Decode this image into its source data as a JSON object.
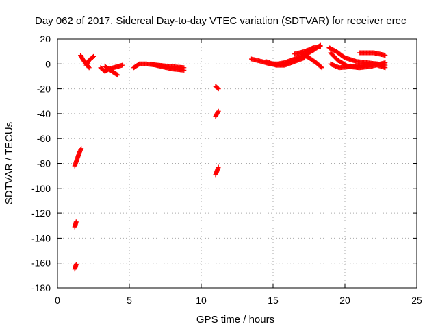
{
  "chart_data": {
    "type": "scatter",
    "title": "Day 062 of 2017, Sidereal Day-to-day VTEC variation (SDTVAR) for receiver erec",
    "xlabel": "GPS time / hours",
    "ylabel": "SDTVAR / TECUs",
    "xlim": [
      0,
      25
    ],
    "ylim": [
      -180,
      20
    ],
    "xticks": [
      0,
      5,
      10,
      15,
      20,
      25
    ],
    "yticks": [
      -180,
      -160,
      -140,
      -120,
      -100,
      -80,
      -60,
      -40,
      -20,
      0,
      20
    ],
    "grid": true,
    "marker": "+",
    "colors": {
      "series": "#ff0000",
      "grid": "#aaaaaa",
      "axis": "#000000"
    },
    "series": [
      {
        "name": "SDTVAR",
        "segments": [
          [
            [
              1.2,
              -165
            ],
            [
              1.25,
              -163
            ],
            [
              1.3,
              -161
            ]
          ],
          [
            [
              1.2,
              -131
            ],
            [
              1.25,
              -129
            ],
            [
              1.3,
              -127
            ]
          ],
          [
            [
              1.2,
              -82
            ],
            [
              1.35,
              -77
            ],
            [
              1.5,
              -72
            ],
            [
              1.65,
              -68
            ]
          ],
          [
            [
              1.6,
              7
            ],
            [
              1.8,
              3
            ],
            [
              2.0,
              0
            ],
            [
              2.2,
              -3
            ]
          ],
          [
            [
              2.0,
              -1
            ],
            [
              2.2,
              3
            ],
            [
              2.5,
              6
            ]
          ],
          [
            [
              3.0,
              -3
            ],
            [
              3.3,
              -6
            ],
            [
              3.6,
              -4
            ],
            [
              3.9,
              -3
            ],
            [
              4.2,
              -2
            ],
            [
              4.5,
              -1
            ]
          ],
          [
            [
              3.3,
              -2
            ],
            [
              3.8,
              -6
            ],
            [
              4.2,
              -9
            ]
          ],
          [
            [
              5.3,
              -3
            ],
            [
              5.7,
              0
            ],
            [
              6.2,
              0
            ],
            [
              7.0,
              -1
            ],
            [
              7.8,
              -2
            ],
            [
              8.8,
              -3
            ]
          ],
          [
            [
              6.5,
              0
            ],
            [
              7.2,
              -2
            ],
            [
              8.0,
              -4
            ],
            [
              8.8,
              -5
            ]
          ],
          [
            [
              11.0,
              -18
            ],
            [
              11.2,
              -20
            ]
          ],
          [
            [
              11.0,
              -42
            ],
            [
              11.2,
              -38
            ]
          ],
          [
            [
              11.0,
              -89
            ],
            [
              11.2,
              -83
            ]
          ],
          [
            [
              13.5,
              4
            ],
            [
              14.2,
              2
            ],
            [
              14.8,
              0
            ],
            [
              15.3,
              0
            ],
            [
              15.8,
              1
            ],
            [
              16.5,
              4
            ],
            [
              17.2,
              7
            ],
            [
              17.8,
              11
            ],
            [
              18.3,
              15
            ]
          ],
          [
            [
              14.5,
              2
            ],
            [
              15.2,
              -1
            ],
            [
              15.8,
              -1
            ],
            [
              16.5,
              2
            ],
            [
              17.2,
              5
            ]
          ],
          [
            [
              16.5,
              8
            ],
            [
              17.2,
              10
            ],
            [
              17.8,
              13
            ],
            [
              18.3,
              14
            ]
          ],
          [
            [
              17.0,
              8
            ],
            [
              17.5,
              5
            ],
            [
              18.0,
              1
            ],
            [
              18.4,
              -3
            ]
          ],
          [
            [
              18.9,
              13
            ],
            [
              19.4,
              10
            ],
            [
              20.0,
              5
            ],
            [
              20.8,
              2
            ],
            [
              21.5,
              1
            ],
            [
              22.3,
              0
            ],
            [
              22.8,
              -1
            ]
          ],
          [
            [
              19.0,
              0
            ],
            [
              19.6,
              -3
            ],
            [
              20.5,
              -2
            ],
            [
              21.3,
              -1
            ],
            [
              22.0,
              0
            ],
            [
              22.8,
              -3
            ]
          ],
          [
            [
              19.0,
              9
            ],
            [
              19.5,
              3
            ],
            [
              20.2,
              -2
            ],
            [
              21.0,
              -3
            ],
            [
              21.8,
              -2
            ],
            [
              22.8,
              1
            ]
          ],
          [
            [
              21.0,
              9
            ],
            [
              22.0,
              9
            ],
            [
              22.8,
              7
            ]
          ]
        ]
      }
    ]
  }
}
